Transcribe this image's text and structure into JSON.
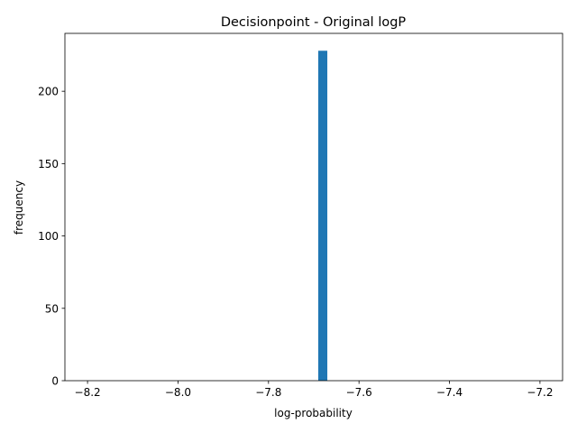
{
  "chart_data": {
    "type": "bar",
    "title": "Decisionpoint - Original logP",
    "xlabel": "log-probability",
    "ylabel": "frequency",
    "xlim": [
      -8.25,
      -7.15
    ],
    "ylim": [
      0,
      240
    ],
    "x_ticks": [
      {
        "value": -8.2,
        "label": "−8.2"
      },
      {
        "value": -8.0,
        "label": "−8.0"
      },
      {
        "value": -7.8,
        "label": "−7.8"
      },
      {
        "value": -7.6,
        "label": "−7.6"
      },
      {
        "value": -7.4,
        "label": "−7.4"
      },
      {
        "value": -7.2,
        "label": "−7.2"
      }
    ],
    "y_ticks": [
      {
        "value": 0,
        "label": "0"
      },
      {
        "value": 50,
        "label": "50"
      },
      {
        "value": 100,
        "label": "100"
      },
      {
        "value": 150,
        "label": "150"
      },
      {
        "value": 200,
        "label": "200"
      }
    ],
    "bars": [
      {
        "x_start": -7.69,
        "x_end": -7.67,
        "value": 228
      }
    ],
    "bar_color": "#1f77b4",
    "grid": false,
    "legend": false
  }
}
